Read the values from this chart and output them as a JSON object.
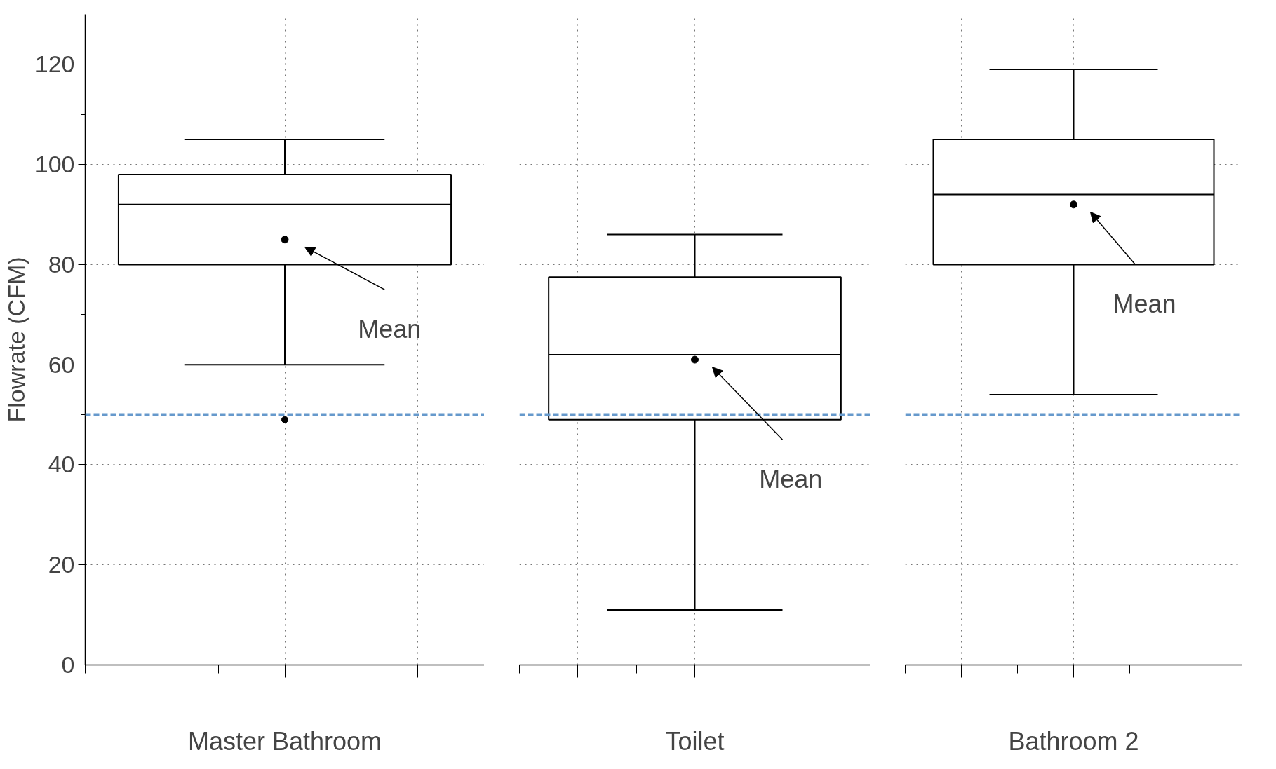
{
  "chart_data": {
    "type": "box",
    "ylabel": "Flowrate (CFM)",
    "categories": [
      "Master Bathroom",
      "Toilet",
      "Bathroom 2"
    ],
    "boxes": [
      {
        "low": 60,
        "q1": 80,
        "median": 92,
        "q3": 98,
        "high": 105,
        "mean": 85,
        "outliers": [
          49
        ]
      },
      {
        "low": 11,
        "q1": 49,
        "median": 62,
        "q3": 77.5,
        "high": 86,
        "mean": 61
      },
      {
        "low": 54,
        "q1": 80,
        "median": 94,
        "q3": 105,
        "high": 119,
        "mean": 92
      }
    ],
    "ylim": [
      0,
      130
    ],
    "yticks": [
      0,
      20,
      40,
      60,
      80,
      100,
      120
    ],
    "grid": true,
    "ref_lines": [
      {
        "axis": "y",
        "value": 50,
        "color": "#6699cc",
        "line_style": "dashed"
      }
    ],
    "annotations": [
      "Mean",
      "Mean",
      "Mean"
    ]
  }
}
